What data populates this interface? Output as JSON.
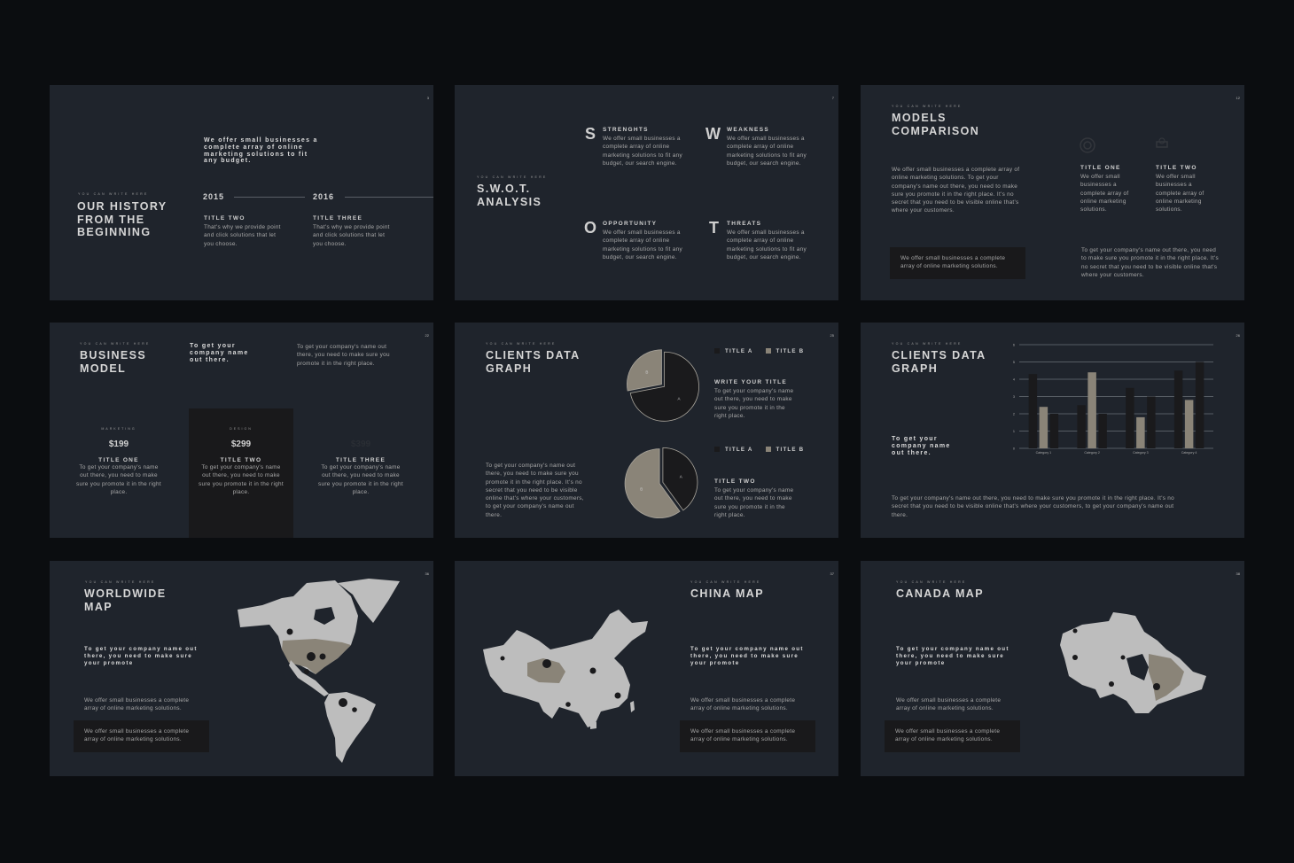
{
  "colors": {
    "page_bg": "#0b0d10",
    "slide_bg": "#1f242c",
    "dark": "#1a1a1c",
    "taupe": "#8a8478",
    "map": "#bdbdbd"
  },
  "kicker": "YOU CAN WRITE HERE",
  "s1": {
    "num": "3",
    "title": "OUR HISTORY FROM THE BEGINNING",
    "quote": "We offer small businesses a complete array of online marketing solutions to fit any budget.",
    "items": [
      {
        "year": "2015",
        "title": "TITLE TWO",
        "text": "That's why we provide point and click solutions that let you choose."
      },
      {
        "year": "2016",
        "title": "TITLE THREE",
        "text": "That's why we provide point and click solutions that let you choose."
      }
    ]
  },
  "s2": {
    "num": "7",
    "title": "S.W.O.T. ANALYSIS",
    "items": [
      {
        "letter": "S",
        "title": "STRENGHTS",
        "text": "We offer small businesses a complete array of online marketing solutions to fit any budget, our search engine."
      },
      {
        "letter": "W",
        "title": "WEAKNESS",
        "text": "We offer small businesses a complete array of online marketing solutions to fit any budget, our search engine."
      },
      {
        "letter": "O",
        "title": "OPPORTUNITY",
        "text": "We offer small businesses a complete array of online marketing solutions to fit any budget, our search engine."
      },
      {
        "letter": "T",
        "title": "THREATS",
        "text": "We offer small businesses a complete array of online marketing solutions to fit any budget, our search engine."
      }
    ]
  },
  "s3": {
    "num": "12",
    "title": "MODELS COMPARISON",
    "text": "We offer small businesses a complete array of online marketing solutions. To get your company's name out there, you need to make sure you promote it in the right place. It's no secret that you need to be visible online that's where your customers.",
    "box": "We offer small businesses a complete array of online marketing solutions.",
    "cols": [
      {
        "icon": "target-icon",
        "title": "TITLE ONE",
        "text": "We offer small businesses a complete array of online marketing solutions."
      },
      {
        "icon": "money-icon",
        "title": "TITLE TWO",
        "text": "We offer small businesses a complete array of online marketing solutions."
      }
    ],
    "text2": "To get your company's name out there, you need to make sure you promote it in the right place. It's no secret that you need to be visible online that's where your customers."
  },
  "s4": {
    "num": "22",
    "title": "BUSINESS MODEL",
    "bold": "To get your company name out there.",
    "text": "To get your company's name out there, you need to make sure you promote it in the right place.",
    "cards": [
      {
        "label": "MARKETING",
        "price": "$199",
        "title": "TITLE ONE",
        "text": "To get your company's name out there, you need to make sure you promote it in the right place."
      },
      {
        "label": "DESIGN",
        "price": "$299",
        "title": "TITLE TWO",
        "text": "To get your company's name out there, you need to make sure you promote it in the right place.",
        "highlighted": true
      },
      {
        "label": "",
        "price": "$399",
        "title": "TITLE THREE",
        "text": "To get your company's name out there, you need to make sure you promote it in the right place."
      }
    ]
  },
  "s5": {
    "num": "25",
    "title": "CLIENTS DATA GRAPH",
    "text": "To get your company's name out there, you need to make sure you promote it in the right place. It's no secret that you need to be visible online that's where your customers, to get your company's name out there.",
    "blocks": [
      {
        "title": "WRITE YOUR TITLE",
        "text": "To get your company's name out there, you need to make sure you promote it in the right place."
      },
      {
        "title": "TITLE TWO",
        "text": "To get your company's name out there, you need to make sure you promote it in the right place."
      }
    ]
  },
  "s6": {
    "num": "26",
    "title": "CLIENTS DATA GRAPH",
    "bold": "To get your company name out there.",
    "text": "To get your company's name out there, you need to make sure you promote it in the right place. It's no secret that you need to be visible online that's where your customers, to get your company's name out there."
  },
  "s7": {
    "num": "36",
    "title": "WORLDWIDE MAP",
    "bold": "To get your company name out there, you need to make sure your promote",
    "text": "We offer small businesses a complete array of online marketing solutions.",
    "box": "We offer small businesses a complete array of online marketing solutions."
  },
  "s8": {
    "num": "37",
    "title": "CHINA MAP",
    "bold": "To get your company name out there, you need to make sure your promote",
    "text": "We offer small businesses a complete array of online marketing solutions.",
    "box": "We offer small businesses a complete array of online marketing solutions."
  },
  "s9": {
    "num": "38",
    "title": "CANADA MAP",
    "bold": "To get your company name out there, you need to make sure your promote",
    "text": "We offer small businesses a complete array of online marketing solutions.",
    "box": "We offer small businesses a complete array of online marketing solutions."
  },
  "chart_data": [
    {
      "type": "pie",
      "labels": [
        "A",
        "B"
      ],
      "values": [
        72,
        28
      ],
      "legend": [
        "TITLE A",
        "TITLE B"
      ],
      "colors": [
        "#1a1a1c",
        "#8a8478"
      ],
      "legend_placement": "top-right"
    },
    {
      "type": "pie",
      "labels": [
        "A",
        "B"
      ],
      "values": [
        40,
        60
      ],
      "legend": [
        "TITLE A",
        "TITLE B"
      ],
      "colors": [
        "#1a1a1c",
        "#8a8478"
      ],
      "legend_placement": "top-right"
    },
    {
      "type": "bar",
      "categories": [
        "Category 1",
        "Category 2",
        "Category 3",
        "Category 4"
      ],
      "series": [
        {
          "values": [
            4.3,
            2.5,
            3.5,
            4.5
          ],
          "color": "#1a1a1c"
        },
        {
          "values": [
            2.4,
            4.4,
            1.8,
            2.8
          ],
          "color": "#8a8478"
        },
        {
          "values": [
            2.0,
            2.0,
            3.0,
            5.0
          ],
          "color": "#1a1a1c"
        }
      ],
      "ylim": [
        0,
        6
      ],
      "yticks": [
        0,
        1,
        2,
        3,
        4,
        5,
        6
      ],
      "grid": true
    }
  ]
}
